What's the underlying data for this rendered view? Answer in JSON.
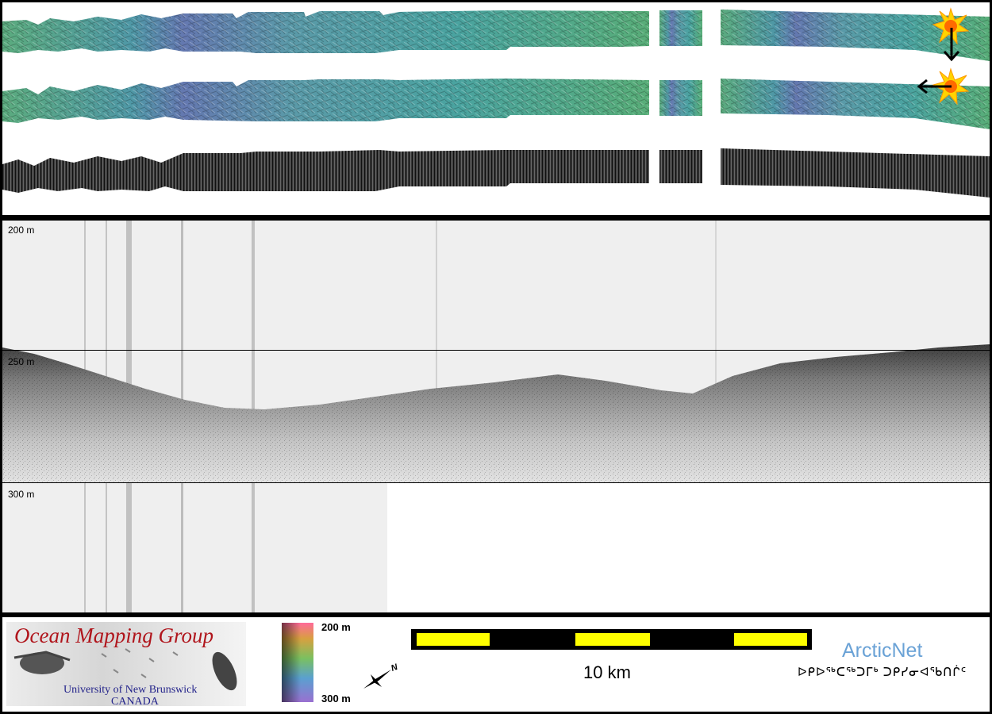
{
  "profile": {
    "depth_labels": [
      "200 m",
      "250 m",
      "300 m"
    ]
  },
  "legend": {
    "group_title": "Ocean Mapping Group",
    "group_subtitle_1": "University of New Brunswick",
    "group_subtitle_2": "CANADA",
    "colorbar_top": "200 m",
    "colorbar_bottom": "300 m",
    "north_label": "N",
    "scale_label": "10 km",
    "arcticnet_name": "ArcticNet",
    "arcticnet_syllabics": "ᐅᑭᐅᖅᑕᖅᑐᒥᒃ ᑐᑭᓯᓂᐊᖃᑎᒌᑦ"
  },
  "colors": {
    "swath_green": "#5aa48a",
    "swath_teal": "#4aa3a0",
    "swath_blue": "#6a86b5",
    "backscatter": "#2e2e2e",
    "scale_yellow": "#ffff00",
    "omg_red": "#b0151c",
    "arcticnet_blue": "#6aa2d6"
  },
  "icons": [
    "sun-icon",
    "arrow-down-icon",
    "arrow-left-icon",
    "north-arrow-icon"
  ]
}
